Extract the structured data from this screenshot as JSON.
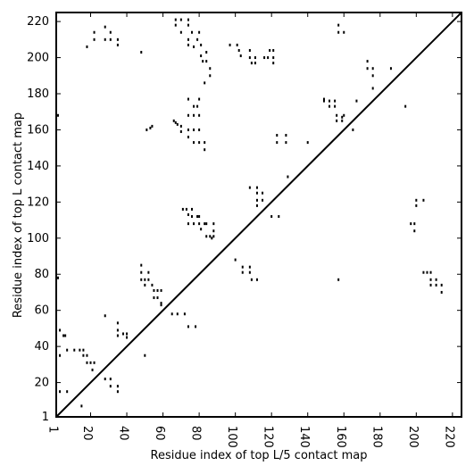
{
  "chart_data": {
    "type": "scatter",
    "xlabel": "Residue index of top L/5 contact map",
    "ylabel": "Residue index of top L contact map",
    "xlim": [
      1,
      225
    ],
    "ylim": [
      1,
      225
    ],
    "xticks": [
      1,
      20,
      40,
      60,
      80,
      100,
      120,
      140,
      160,
      180,
      200,
      220
    ],
    "yticks": [
      1,
      20,
      40,
      60,
      80,
      100,
      120,
      140,
      160,
      180,
      200,
      220
    ],
    "series": [
      {
        "color": "#000000",
        "x": [
          2,
          18,
          22,
          22,
          28,
          28,
          31,
          31,
          35,
          35,
          48,
          67,
          67,
          70,
          70,
          74,
          74,
          74,
          74,
          76,
          77,
          79,
          80,
          81,
          81,
          82,
          84,
          84,
          86,
          86,
          83,
          97,
          101,
          102,
          103,
          108,
          108,
          109,
          111,
          111,
          116,
          118,
          119,
          121,
          121,
          121,
          128,
          128,
          123,
          123,
          140,
          129,
          51,
          53,
          54,
          66,
          67,
          68,
          70,
          70,
          74,
          74,
          74,
          74,
          77,
          77,
          77,
          77,
          79,
          80,
          80,
          80,
          80,
          83,
          83,
          71,
          73,
          74,
          74,
          76,
          76,
          77,
          79,
          80,
          80,
          81,
          83,
          84,
          84,
          86,
          88,
          88,
          88,
          87,
          108,
          112,
          112,
          112,
          112,
          115,
          115,
          120,
          124,
          157,
          157,
          160,
          149,
          149,
          152,
          152,
          155,
          155,
          156,
          156,
          159,
          159,
          160,
          167,
          165,
          173,
          173,
          176,
          176,
          176,
          186,
          194,
          2,
          3,
          5,
          6,
          7,
          3,
          11,
          14,
          16,
          16,
          18,
          18,
          20,
          21,
          22,
          28,
          28,
          31,
          31,
          35,
          35,
          15,
          3,
          7,
          35,
          35,
          35,
          38,
          40,
          40,
          50,
          48,
          48,
          48,
          50,
          50,
          52,
          52,
          54,
          55,
          55,
          57,
          57,
          59,
          59,
          59,
          65,
          68,
          72,
          74,
          78,
          100,
          104,
          104,
          108,
          108,
          109,
          112,
          157,
          197,
          199,
          199,
          200,
          200,
          204,
          204,
          206,
          208,
          208,
          208,
          211,
          211,
          214,
          214
        ],
        "values": [
          168,
          206,
          214,
          210,
          217,
          210,
          214,
          210,
          210,
          207,
          203,
          221,
          218,
          221,
          214,
          221,
          218,
          210,
          207,
          214,
          206,
          210,
          214,
          207,
          201,
          198,
          198,
          203,
          194,
          190,
          186,
          207,
          207,
          204,
          201,
          204,
          200,
          197,
          200,
          197,
          200,
          200,
          204,
          200,
          197,
          204,
          157,
          153,
          157,
          153,
          153,
          134,
          160,
          161,
          162,
          165,
          164,
          163,
          162,
          159,
          177,
          168,
          160,
          156,
          173,
          168,
          160,
          153,
          173,
          177,
          168,
          160,
          153,
          153,
          149,
          116,
          116,
          113,
          108,
          116,
          112,
          108,
          112,
          112,
          108,
          105,
          108,
          108,
          101,
          101,
          108,
          104,
          101,
          100,
          128,
          128,
          125,
          121,
          118,
          125,
          121,
          112,
          112,
          218,
          214,
          214,
          177,
          176,
          176,
          173,
          176,
          173,
          168,
          165,
          165,
          167,
          168,
          176,
          160,
          198,
          194,
          194,
          190,
          183,
          194,
          173,
          78,
          49,
          46,
          46,
          38,
          35,
          38,
          38,
          38,
          35,
          35,
          31,
          31,
          27,
          31,
          57,
          22,
          18,
          22,
          18,
          15,
          7,
          15,
          15,
          53,
          49,
          46,
          47,
          47,
          45,
          35,
          85,
          81,
          77,
          77,
          74,
          81,
          77,
          74,
          71,
          67,
          71,
          67,
          71,
          64,
          63,
          58,
          58,
          58,
          51,
          51,
          88,
          84,
          81,
          84,
          81,
          77,
          77,
          77,
          108,
          108,
          104,
          121,
          118,
          121,
          81,
          81,
          81,
          77,
          74,
          77,
          74,
          74,
          70
        ]
      }
    ]
  }
}
